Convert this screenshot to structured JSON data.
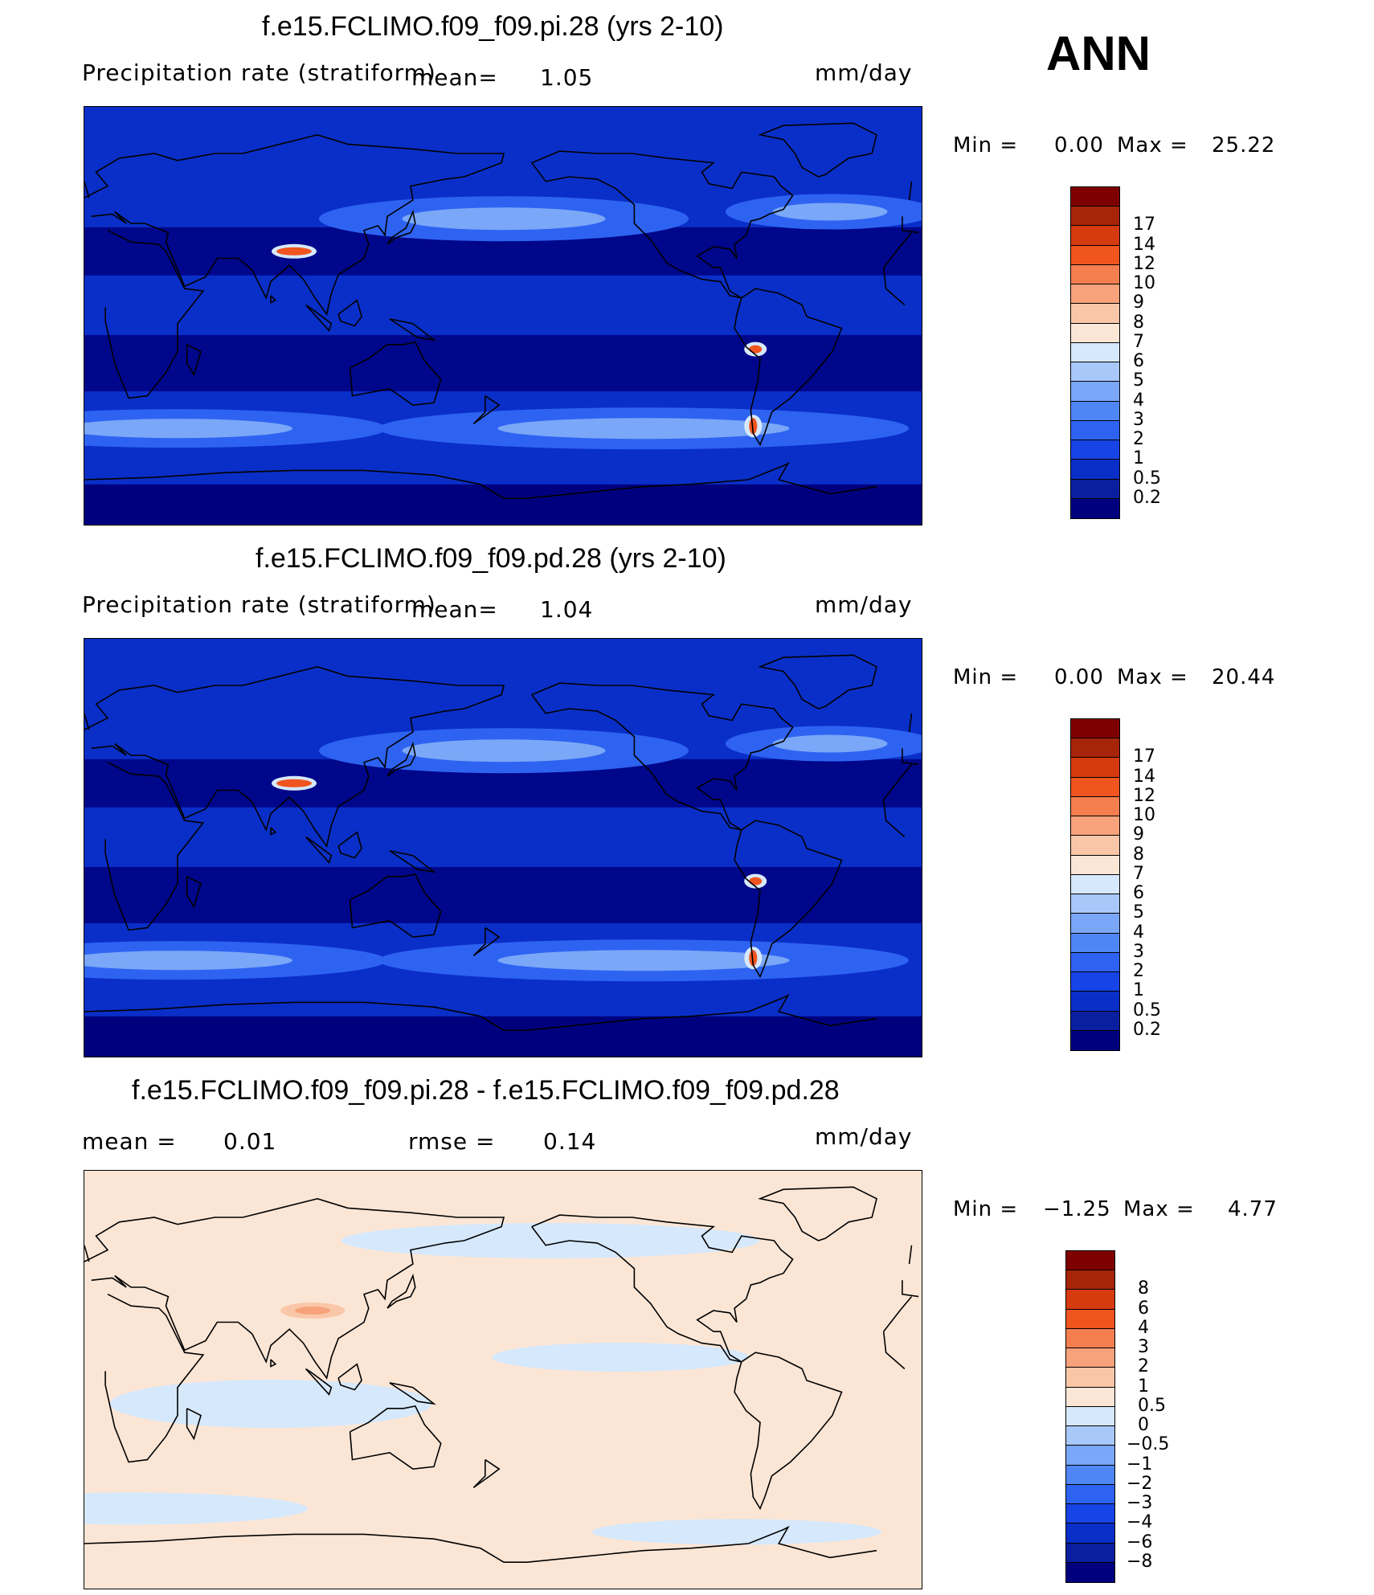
{
  "header": {
    "season": "ANN"
  },
  "panels": [
    {
      "title": "f.e15.FCLIMO.f09_f09.pi.28 (yrs 2-10)",
      "variable": "Precipitation rate (stratiform)",
      "mean_label": "mean=",
      "mean_value": "1.05",
      "units": "mm/day",
      "min_label": "Min =",
      "min_value": "0.00",
      "max_label": "Max =",
      "max_value": "25.22"
    },
    {
      "title": "f.e15.FCLIMO.f09_f09.pd.28 (yrs 2-10)",
      "variable": "Precipitation rate (stratiform)",
      "mean_label": "mean=",
      "mean_value": "1.04",
      "units": "mm/day",
      "min_label": "Min =",
      "min_value": "0.00",
      "max_label": "Max =",
      "max_value": "20.44"
    },
    {
      "title": "f.e15.FCLIMO.f09_f09.pi.28 - f.e15.FCLIMO.f09_f09.pd.28",
      "mean_label": "mean =",
      "mean_value": "0.01",
      "rmse_label": "rmse =",
      "rmse_value": "0.14",
      "units": "mm/day",
      "min_label": "Min =",
      "min_value": "−1.25",
      "max_label": "Max =",
      "max_value": "4.77"
    }
  ],
  "chart_data": [
    {
      "type": "heatmap",
      "title": "f.e15.FCLIMO.f09_f09.pi.28 (yrs 2-10)",
      "field": "Precipitation rate (stratiform)",
      "units": "mm/day",
      "mean": 1.05,
      "min": 0.0,
      "max": 25.22,
      "colorbar_levels": [
        "0.2",
        "0.5",
        "1",
        "2",
        "3",
        "4",
        "5",
        "6",
        "7",
        "8",
        "9",
        "10",
        "12",
        "14",
        "17"
      ],
      "colors": [
        "#00007f",
        "#0a1fa0",
        "#0a2fc8",
        "#1744e6",
        "#2e63f2",
        "#4f86f5",
        "#7aa7f7",
        "#a8c8fa",
        "#d6e8fb",
        "#fbe6d6",
        "#f9c7a8",
        "#f7a27a",
        "#f57e4f",
        "#f0541f",
        "#d63a0f",
        "#a62408",
        "#7f0000"
      ]
    },
    {
      "type": "heatmap",
      "title": "f.e15.FCLIMO.f09_f09.pd.28 (yrs 2-10)",
      "field": "Precipitation rate (stratiform)",
      "units": "mm/day",
      "mean": 1.04,
      "min": 0.0,
      "max": 20.44,
      "colorbar_levels": [
        "0.2",
        "0.5",
        "1",
        "2",
        "3",
        "4",
        "5",
        "6",
        "7",
        "8",
        "9",
        "10",
        "12",
        "14",
        "17"
      ],
      "colors": [
        "#00007f",
        "#0a1fa0",
        "#0a2fc8",
        "#1744e6",
        "#2e63f2",
        "#4f86f5",
        "#7aa7f7",
        "#a8c8fa",
        "#d6e8fb",
        "#fbe6d6",
        "#f9c7a8",
        "#f7a27a",
        "#f57e4f",
        "#f0541f",
        "#d63a0f",
        "#a62408",
        "#7f0000"
      ]
    },
    {
      "type": "heatmap",
      "title": "f.e15.FCLIMO.f09_f09.pi.28 - f.e15.FCLIMO.f09_f09.pd.28",
      "units": "mm/day",
      "mean": 0.01,
      "rmse": 0.14,
      "min": -1.25,
      "max": 4.77,
      "colorbar_levels": [
        "−8",
        "−6",
        "−4",
        "−3",
        "−2",
        "−1",
        "−0.5",
        "0",
        "0.5",
        "1",
        "2",
        "3",
        "4",
        "6",
        "8"
      ],
      "colors": [
        "#00007f",
        "#0a1fa0",
        "#0a2fc8",
        "#1744e6",
        "#2e63f2",
        "#4f86f5",
        "#7aa7f7",
        "#a8c8fa",
        "#d6e8fb",
        "#fbe6d6",
        "#f9c7a8",
        "#f7a27a",
        "#f57e4f",
        "#f0541f",
        "#d63a0f",
        "#a62408",
        "#7f0000"
      ]
    }
  ]
}
